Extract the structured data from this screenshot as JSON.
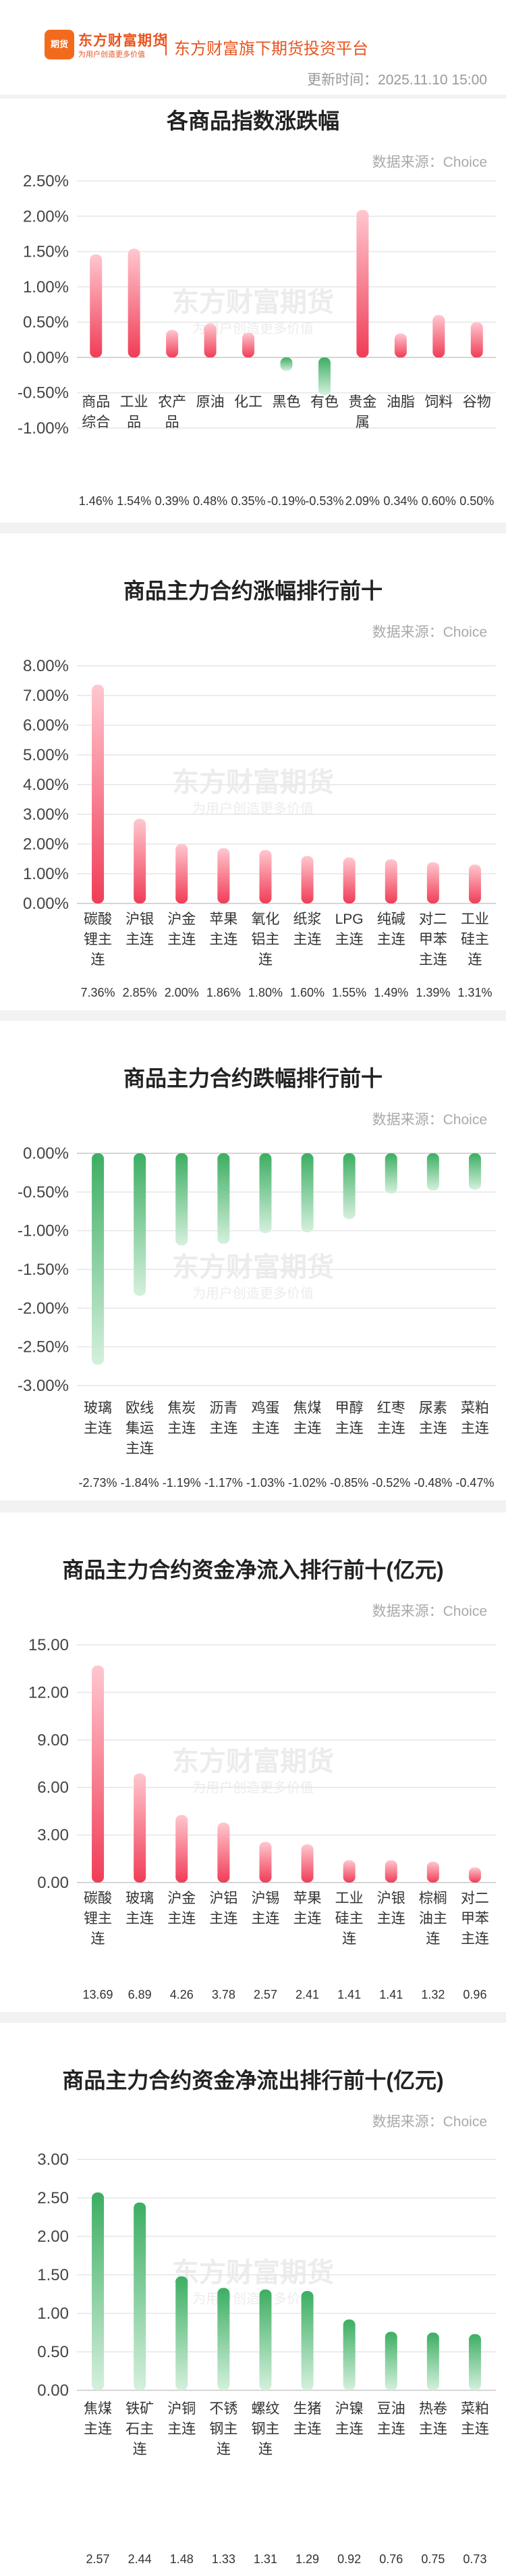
{
  "header": {
    "logo_badge": "期货",
    "brand_name": "东方财富期货",
    "brand_slogan": "为用户创造更多价值",
    "platform": "东方财富旗下期货投资平台",
    "update_time": "更新时间：2025.11.10 15:00"
  },
  "watermark": {
    "main": "东方财富期货",
    "sub": "为用户创造更多价值"
  },
  "colors": {
    "up_bar": "#f03d57",
    "up_bar_light": "#ffc7cf",
    "down_bar": "#3cae62",
    "down_bar_light": "#d5f0dd",
    "grid": "#e6e6e6",
    "axis_zero": "#c8c8c8"
  },
  "panels": [
    {
      "title": "各商品指数涨跌幅",
      "source": "数据来源：Choice",
      "chart_data": {
        "type": "bar",
        "categories": [
          "商品\n综合",
          "工业\n品",
          "农产\n品",
          "原油",
          "化工",
          "黑色",
          "有色",
          "贵金\n属",
          "油脂",
          "饲料",
          "谷物"
        ],
        "values": [
          1.46,
          1.54,
          0.39,
          0.48,
          0.35,
          -0.19,
          -0.53,
          2.09,
          0.34,
          0.6,
          0.5
        ],
        "value_labels": [
          "1.46%",
          "1.54%",
          "0.39%",
          "0.48%",
          "0.35%",
          "-0.19%",
          "-0.53%",
          "2.09%",
          "0.34%",
          "0.60%",
          "0.50%"
        ],
        "yticks": [
          "2.50%",
          "2.00%",
          "1.50%",
          "1.00%",
          "0.50%",
          "0.00%",
          "-0.50%",
          "-1.00%"
        ],
        "ylim": [
          -1.0,
          2.5
        ],
        "grid": true
      }
    },
    {
      "title": "商品主力合约涨幅排行前十",
      "source": "数据来源：Choice",
      "chart_data": {
        "type": "bar",
        "categories": [
          "碳酸\n锂主\n连",
          "沪银\n主连",
          "沪金\n主连",
          "苹果\n主连",
          "氧化\n铝主\n连",
          "纸浆\n主连",
          "LPG\n主连",
          "纯碱\n主连",
          "对二\n甲苯\n主连",
          "工业\n硅主\n连"
        ],
        "values": [
          7.36,
          2.85,
          2.0,
          1.86,
          1.8,
          1.6,
          1.55,
          1.49,
          1.39,
          1.31
        ],
        "value_labels": [
          "7.36%",
          "2.85%",
          "2.00%",
          "1.86%",
          "1.80%",
          "1.60%",
          "1.55%",
          "1.49%",
          "1.39%",
          "1.31%"
        ],
        "yticks": [
          "8.00%",
          "7.00%",
          "6.00%",
          "5.00%",
          "4.00%",
          "3.00%",
          "2.00%",
          "1.00%",
          "0.00%"
        ],
        "ylim": [
          0,
          8
        ],
        "grid": true
      }
    },
    {
      "title": "商品主力合约跌幅排行前十",
      "source": "数据来源：Choice",
      "chart_data": {
        "type": "bar",
        "categories": [
          "玻璃\n主连",
          "欧线\n集运\n主连",
          "焦炭\n主连",
          "沥青\n主连",
          "鸡蛋\n主连",
          "焦煤\n主连",
          "甲醇\n主连",
          "红枣\n主连",
          "尿素\n主连",
          "菜粕\n主连"
        ],
        "values": [
          -2.73,
          -1.84,
          -1.19,
          -1.17,
          -1.03,
          -1.02,
          -0.85,
          -0.52,
          -0.48,
          -0.47
        ],
        "value_labels": [
          "-2.73%",
          "-1.84%",
          "-1.19%",
          "-1.17%",
          "-1.03%",
          "-1.02%",
          "-0.85%",
          "-0.52%",
          "-0.48%",
          "-0.47%"
        ],
        "yticks": [
          "0.00%",
          "-0.50%",
          "-1.00%",
          "-1.50%",
          "-2.00%",
          "-2.50%",
          "-3.00%"
        ],
        "ylim": [
          -3.0,
          0
        ],
        "grid": true
      }
    },
    {
      "title": "商品主力合约资金净流入排行前十(亿元)",
      "source": "数据来源：Choice",
      "chart_data": {
        "type": "bar",
        "categories": [
          "碳酸\n锂主\n连",
          "玻璃\n主连",
          "沪金\n主连",
          "沪铝\n主连",
          "沪锡\n主连",
          "苹果\n主连",
          "工业\n硅主\n连",
          "沪银\n主连",
          "棕榈\n油主\n连",
          "对二\n甲苯\n主连"
        ],
        "values": [
          13.69,
          6.89,
          4.26,
          3.78,
          2.57,
          2.41,
          1.41,
          1.41,
          1.32,
          0.96
        ],
        "value_labels": [
          "13.69",
          "6.89",
          "4.26",
          "3.78",
          "2.57",
          "2.41",
          "1.41",
          "1.41",
          "1.32",
          "0.96"
        ],
        "yticks": [
          "15.00",
          "12.00",
          "9.00",
          "6.00",
          "3.00",
          "0.00"
        ],
        "ylim": [
          0,
          15
        ],
        "grid": true
      }
    },
    {
      "title": "商品主力合约资金净流出排行前十(亿元)",
      "source": "数据来源：Choice",
      "chart_data": {
        "type": "bar",
        "categories": [
          "焦煤\n主连",
          "铁矿\n石主\n连",
          "沪铜\n主连",
          "不锈\n钢主\n连",
          "螺纹\n钢主\n连",
          "生猪\n主连",
          "沪镍\n主连",
          "豆油\n主连",
          "热卷\n主连",
          "菜粕\n主连"
        ],
        "values": [
          2.57,
          2.44,
          1.48,
          1.33,
          1.31,
          1.29,
          0.92,
          0.76,
          0.75,
          0.73
        ],
        "value_labels": [
          "2.57",
          "2.44",
          "1.48",
          "1.33",
          "1.31",
          "1.29",
          "0.92",
          "0.76",
          "0.75",
          "0.73"
        ],
        "bar_color": "down",
        "yticks": [
          "3.00",
          "2.50",
          "2.00",
          "1.50",
          "1.00",
          "0.50",
          "0.00"
        ],
        "ylim": [
          0,
          3
        ],
        "grid": true
      }
    }
  ]
}
